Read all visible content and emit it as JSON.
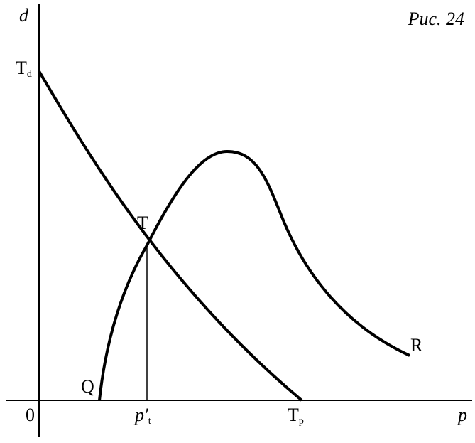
{
  "figure_label": "Рис. 24",
  "axes": {
    "y_label": "d",
    "x_label": "p",
    "origin": "0"
  },
  "points": {
    "td": {
      "main": "T",
      "sub": "d"
    },
    "tp": {
      "main": "T",
      "sub": "p"
    },
    "t": "T",
    "q": "Q",
    "r": "R",
    "pt": {
      "main": "p′",
      "sub": "t"
    }
  }
}
